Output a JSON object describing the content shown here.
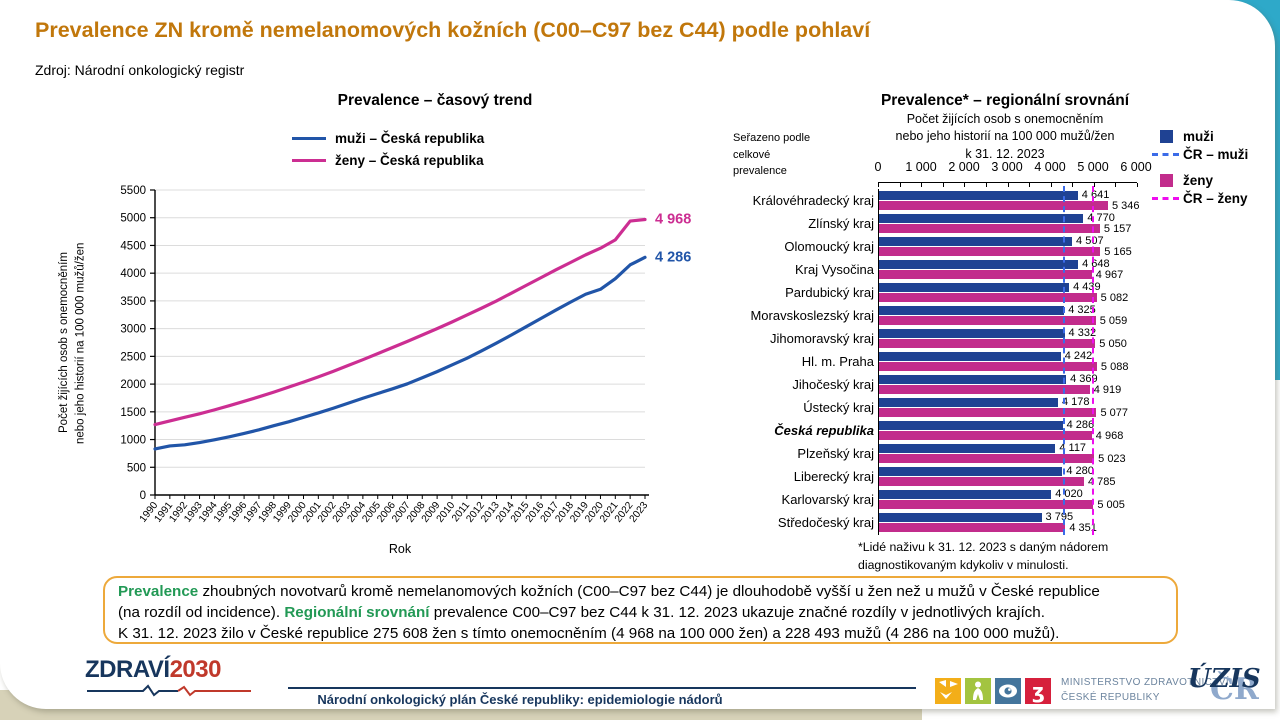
{
  "header": {
    "title": "Prevalence ZN kromě nemelanomových kožních (C00–C97 bez C44) podle pohlaví",
    "source": "Zdroj: Národní onkologický registr"
  },
  "colors": {
    "title_orange": "#C1770B",
    "accent_green": "#229955",
    "box_border": "#EDA93B",
    "teal_corner": "#2EA9C9",
    "tan_band": "#D7D2B8",
    "dark_blue": "#17365D",
    "men_line": "#2155A8",
    "women_line": "#CC2E92",
    "men_bar": "#1F4293",
    "women_bar": "#C22C8C",
    "men_ref": "#3B6BE8",
    "women_ref": "#EE0DEE"
  },
  "chart_data": [
    {
      "type": "line",
      "title": "Prevalence – časový trend",
      "ylabel_lines": [
        "Počet žijících osob s onemocněním",
        "nebo jeho historií na 100 000 mužů/žen"
      ],
      "xlabel": "Rok",
      "ylim": [
        0,
        5500
      ],
      "ytick_step": 500,
      "grid": true,
      "legend_position": "top",
      "x": [
        1990,
        1991,
        1992,
        1993,
        1994,
        1995,
        1996,
        1997,
        1998,
        1999,
        2000,
        2001,
        2002,
        2003,
        2004,
        2005,
        2006,
        2007,
        2008,
        2009,
        2010,
        2011,
        2012,
        2013,
        2014,
        2015,
        2016,
        2017,
        2018,
        2019,
        2020,
        2021,
        2022,
        2023
      ],
      "series": [
        {
          "name": "muži – Česká republika",
          "color": "#2155A8",
          "end_label": "4 286",
          "values": [
            830,
            885,
            905,
            945,
            995,
            1050,
            1110,
            1175,
            1250,
            1320,
            1400,
            1480,
            1565,
            1655,
            1745,
            1830,
            1915,
            2005,
            2115,
            2225,
            2345,
            2465,
            2600,
            2740,
            2885,
            3035,
            3185,
            3335,
            3480,
            3620,
            3710,
            3900,
            4150,
            4286
          ]
        },
        {
          "name": "ženy – Česká republika",
          "color": "#CC2E92",
          "end_label": "4 968",
          "values": [
            1270,
            1335,
            1400,
            1465,
            1535,
            1610,
            1690,
            1770,
            1855,
            1945,
            2035,
            2130,
            2230,
            2335,
            2440,
            2550,
            2660,
            2770,
            2885,
            3000,
            3120,
            3245,
            3370,
            3500,
            3640,
            3780,
            3920,
            4060,
            4195,
            4330,
            4450,
            4600,
            4940,
            4968
          ]
        }
      ]
    },
    {
      "type": "bar",
      "orientation": "horizontal",
      "title": "Prevalence* – regionální srovnání",
      "subtitle_lines": [
        "Počet žijících osob s onemocněním",
        "nebo jeho historií na 100 000 mužů/žen",
        "k 31. 12. 2023"
      ],
      "sort_note": "Seřazeno podle celkové prevalence",
      "xlim": [
        0,
        6000
      ],
      "xticks": [
        "0",
        "1 000",
        "2 000",
        "3 000",
        "4 000",
        "5 000",
        "6 000"
      ],
      "categories": [
        "Královéhradecký kraj",
        "Zlínský kraj",
        "Olomoucký kraj",
        "Kraj Vysočina",
        "Pardubický kraj",
        "Moravskoslezský kraj",
        "Jihomoravský kraj",
        "Hl. m. Praha",
        "Jihočeský kraj",
        "Ústecký kraj",
        "Česká republika",
        "Plzeňský kraj",
        "Liberecký kraj",
        "Karlovarský kraj",
        "Středočeský kraj"
      ],
      "emphasis_category": "Česká republika",
      "series": [
        {
          "name": "muži",
          "color": "#1F4293",
          "values": [
            4641,
            4770,
            4507,
            4648,
            4439,
            4325,
            4332,
            4242,
            4369,
            4178,
            4286,
            4117,
            4280,
            4020,
            3795
          ],
          "labels": [
            "4 641",
            "4 770",
            "4 507",
            "4 648",
            "4 439",
            "4 325",
            "4 332",
            "4 242",
            "4 369",
            "4 178",
            "4 286",
            "4 117",
            "4 280",
            "4 020",
            "3 795"
          ]
        },
        {
          "name": "ženy",
          "color": "#C22C8C",
          "values": [
            5346,
            5157,
            5165,
            4967,
            5082,
            5059,
            5050,
            5088,
            4919,
            5077,
            4968,
            5023,
            4785,
            5005,
            4351
          ],
          "labels": [
            "5 346",
            "5 157",
            "5 165",
            "4 967",
            "5 082",
            "5 059",
            "5 050",
            "5 088",
            "4 919",
            "5 077",
            "4 968",
            "5 023",
            "4 785",
            "5 005",
            "4 351"
          ]
        }
      ],
      "reference_lines": [
        {
          "label": "ČR – muži",
          "value": 4286,
          "color": "#3B6BE8"
        },
        {
          "label": "ČR – ženy",
          "value": 4968,
          "color": "#EE0DEE"
        }
      ],
      "legend": [
        {
          "label": "muži",
          "type": "square",
          "color": "#1F4293"
        },
        {
          "label": "ČR – muži",
          "type": "dash",
          "color": "#3B6BE8"
        },
        {
          "label": "ženy",
          "type": "square",
          "color": "#C22C8C"
        },
        {
          "label": "ČR – ženy",
          "type": "dash",
          "color": "#EE0DEE"
        }
      ],
      "footnote_lines": [
        "*Lidé naživu k 31. 12. 2023 s daným nádorem",
        "diagnostikovaným kdykoliv v minulosti."
      ]
    }
  ],
  "summary_box": {
    "lines": [
      [
        {
          "text": "Prevalence",
          "style": "highlight"
        },
        {
          "text": " zhoubných novotvarů kromě nemelanomových kožních (C00–C97 bez C44) je dlouhodobě vyšší u žen než u mužů v České republice",
          "style": "normal"
        }
      ],
      [
        {
          "text": "(na rozdíl od incidence). ",
          "style": "normal"
        },
        {
          "text": "Regionální srovnání",
          "style": "highlight"
        },
        {
          "text": " prevalence C00–C97 bez C44 k 31. 12. 2023 ukazuje značné rozdíly v jednotlivých krajích.",
          "style": "normal"
        }
      ],
      [
        {
          "text": "K 31. 12. 2023 žilo v České republice 275 608 žen s tímto onemocněním (4 968 na 100 000 žen) a 228 493 mužů (4 286 na 100 000 mužů).",
          "style": "normal"
        }
      ]
    ]
  },
  "footer": {
    "program_logo": {
      "part1": "ZDRAVÍ",
      "part2": "2030"
    },
    "plan_text": "Národní onkologický plán České republiky: epidemiologie nádorů",
    "ministry_lines": [
      "MINISTERSTVO ZDRAVOTNICTVÍ",
      "ČESKÉ REPUBLIKY"
    ],
    "uzis_logo": {
      "front": "ÚZIS",
      "back": "ČR"
    }
  }
}
